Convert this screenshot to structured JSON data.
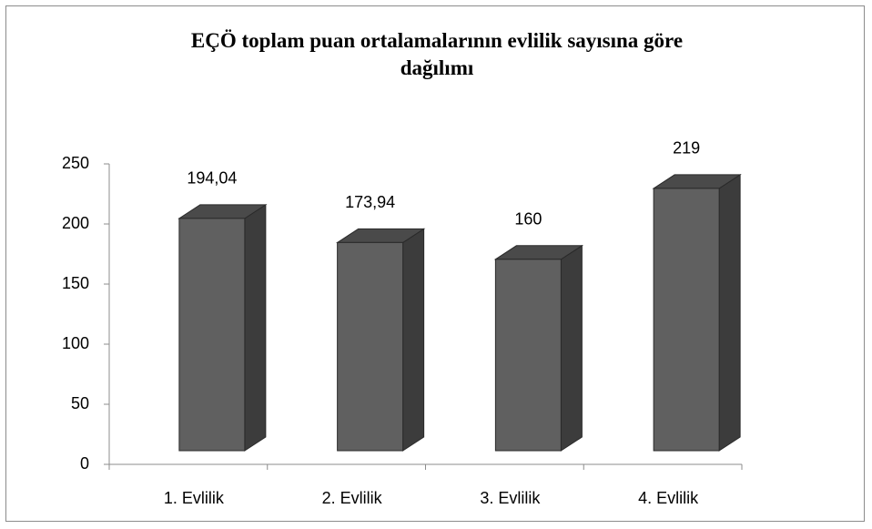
{
  "chart_data": {
    "type": "bar3d",
    "title": "EÇÖ toplam puan ortalamalarının evlilik sayısına göre dağılımı",
    "categories": [
      "1. Evlilik",
      "2. Evlilik",
      "3. Evlilik",
      "4. Evlilik"
    ],
    "values": [
      194.04,
      173.94,
      160,
      219
    ],
    "value_labels": [
      "194,04",
      "173,94",
      "160",
      "219"
    ],
    "color": "#606060",
    "ylim": [
      0,
      250
    ],
    "yticks": [
      0,
      50,
      100,
      150,
      200,
      250
    ],
    "grid": false
  }
}
